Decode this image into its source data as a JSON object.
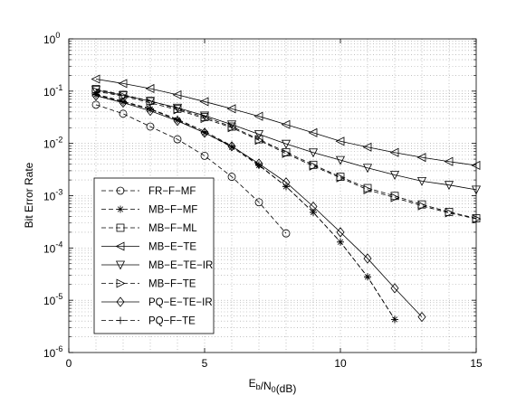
{
  "chart_data": {
    "type": "line",
    "xlabel": "E_b/N_0(dB)",
    "ylabel": "Bit Error Rate",
    "xlim": [
      0,
      15
    ],
    "ylim": [
      1e-06,
      1
    ],
    "yscale": "log",
    "grid": true,
    "legend_position": "lower-left",
    "x_ticks": [
      "0",
      "5",
      "10",
      "15"
    ],
    "y_ticks": [
      {
        "base": "10",
        "exp": "0"
      },
      {
        "base": "10",
        "exp": "-1"
      },
      {
        "base": "10",
        "exp": "-2"
      },
      {
        "base": "10",
        "exp": "-3"
      },
      {
        "base": "10",
        "exp": "-4"
      },
      {
        "base": "10",
        "exp": "-5"
      },
      {
        "base": "10",
        "exp": "-6"
      }
    ],
    "series": [
      {
        "name": "FR−F−MF",
        "marker": "circle",
        "dash": "dashed",
        "x": [
          1,
          2,
          3,
          4,
          5,
          6,
          7,
          8
        ],
        "y": [
          0.055,
          0.037,
          0.021,
          0.012,
          0.0058,
          0.0023,
          0.00075,
          0.00019
        ]
      },
      {
        "name": "MB−F−MF",
        "marker": "star",
        "dash": "dashed",
        "x": [
          1,
          2,
          3,
          4,
          5,
          6,
          7,
          8,
          9,
          10,
          11,
          12
        ],
        "y": [
          0.085,
          0.062,
          0.045,
          0.028,
          0.016,
          0.0085,
          0.0038,
          0.0015,
          0.00048,
          0.00013,
          2.8e-05,
          4.3e-06
        ]
      },
      {
        "name": "MB−F−ML",
        "marker": "square",
        "dash": "dashed",
        "x": [
          1,
          2,
          3,
          4,
          5,
          6,
          7,
          8,
          9,
          10,
          11,
          12,
          13,
          14,
          15
        ],
        "y": [
          0.11,
          0.085,
          0.065,
          0.046,
          0.032,
          0.021,
          0.012,
          0.0068,
          0.0039,
          0.0023,
          0.0014,
          0.00099,
          0.00068,
          0.00049,
          0.00037
        ]
      },
      {
        "name": "MB−E−TE",
        "marker": "triangle-left",
        "dash": "solid",
        "x": [
          1,
          2,
          3,
          4,
          5,
          6,
          7,
          8,
          9,
          10,
          11,
          12,
          13,
          14,
          15
        ],
        "y": [
          0.17,
          0.14,
          0.112,
          0.085,
          0.063,
          0.046,
          0.033,
          0.023,
          0.016,
          0.011,
          0.0085,
          0.0067,
          0.0054,
          0.0045,
          0.0038
        ]
      },
      {
        "name": "MB−E−TE−IR",
        "marker": "triangle-down",
        "dash": "solid",
        "x": [
          1,
          2,
          3,
          4,
          5,
          6,
          7,
          8,
          9,
          10,
          11,
          12,
          13,
          14,
          15
        ],
        "y": [
          0.105,
          0.083,
          0.064,
          0.048,
          0.034,
          0.023,
          0.015,
          0.0098,
          0.0067,
          0.0048,
          0.0034,
          0.0025,
          0.0019,
          0.0016,
          0.0013
        ]
      },
      {
        "name": "MB−F−TE",
        "marker": "triangle-right",
        "dash": "dashed",
        "x": [
          1,
          2,
          3,
          4,
          5,
          6,
          7,
          8,
          9,
          10,
          11,
          12,
          13,
          14,
          15
        ],
        "y": [
          0.1,
          0.08,
          0.06,
          0.044,
          0.03,
          0.02,
          0.0115,
          0.0064,
          0.0037,
          0.0022,
          0.0013,
          0.00092,
          0.00064,
          0.00047,
          0.00036
        ]
      },
      {
        "name": "PQ−E−TE−IR",
        "marker": "diamond",
        "dash": "solid",
        "x": [
          1,
          2,
          3,
          4,
          5,
          6,
          7,
          8,
          9,
          10,
          11,
          12,
          13
        ],
        "y": [
          0.082,
          0.06,
          0.042,
          0.027,
          0.016,
          0.0088,
          0.0041,
          0.0018,
          0.00062,
          0.0002,
          6.3e-05,
          1.7e-05,
          4.8e-06
        ]
      },
      {
        "name": "PQ−F−TE",
        "marker": "plus",
        "dash": "dashed",
        "x": [
          1,
          2,
          3,
          4,
          5,
          6,
          7,
          8,
          9,
          10,
          11,
          12
        ],
        "y": [
          0.088,
          0.064,
          0.046,
          0.029,
          0.017,
          0.009,
          0.0039,
          0.0015,
          0.00048,
          0.00013,
          2.8e-05,
          4.3e-06
        ]
      }
    ]
  }
}
